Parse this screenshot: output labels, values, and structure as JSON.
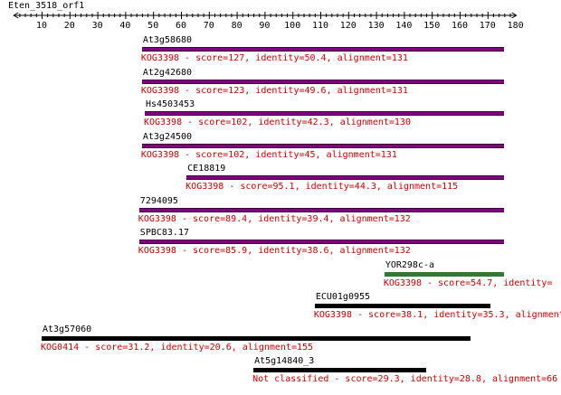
{
  "query": {
    "name": "Eten_3518_orf1",
    "length": 180,
    "tick_labels": [
      "10",
      "20",
      "30",
      "40",
      "50",
      "60",
      "70",
      "80",
      "90",
      "100",
      "110",
      "120",
      "130",
      "140",
      "150",
      "160",
      "170",
      "180"
    ]
  },
  "colors": {
    "bar_purple": "#800080",
    "bar_purple_edge": "#3d003d",
    "bar_green": "#2f7a2f",
    "bar_black": "#000000",
    "description_red": "#cc0000"
  },
  "hits": [
    {
      "name": "At3g58680",
      "start": 46,
      "end": 176,
      "color": "purple",
      "description": "KOG3398 - score=127, identity=50.4, alignment=131"
    },
    {
      "name": "At2g42680",
      "start": 46,
      "end": 176,
      "color": "purple",
      "description": "KOG3398 - score=123, identity=49.6, alignment=131"
    },
    {
      "name": "Hs4503453",
      "start": 47,
      "end": 176,
      "color": "purple",
      "description": "KOG3398 - score=102, identity=42.3, alignment=130"
    },
    {
      "name": "At3g24500",
      "start": 46,
      "end": 176,
      "color": "purple",
      "description": "KOG3398 - score=102, identity=45, alignment=131"
    },
    {
      "name": "CE18819",
      "start": 62,
      "end": 176,
      "color": "purple",
      "description": "KOG3398 - score=95.1, identity=44.3, alignment=115"
    },
    {
      "name": "7294095",
      "start": 45,
      "end": 176,
      "color": "purple",
      "description": "KOG3398 - score=89.4, identity=39.4, alignment=132"
    },
    {
      "name": "SPBC83.17",
      "start": 45,
      "end": 176,
      "color": "purple",
      "description": "KOG3398 - score=85.9, identity=38.6, alignment=132"
    },
    {
      "name": "YOR298c-a",
      "start": 133,
      "end": 176,
      "color": "green",
      "description": "KOG3398 - score=54.7, identity="
    },
    {
      "name": "ECU01g0955",
      "start": 108,
      "end": 171,
      "color": "black",
      "description": "KOG3398 - score=38.1, identity=35.3, alignment="
    },
    {
      "name": "At3g57060",
      "start": 10,
      "end": 164,
      "color": "black",
      "description": "KOG0414 - score=31.2, identity=20.6, alignment=155"
    },
    {
      "name": "At5g14840_3",
      "start": 86,
      "end": 148,
      "color": "black",
      "description": "Not classified - score=29.3, identity=28.8, alignment=66"
    }
  ]
}
